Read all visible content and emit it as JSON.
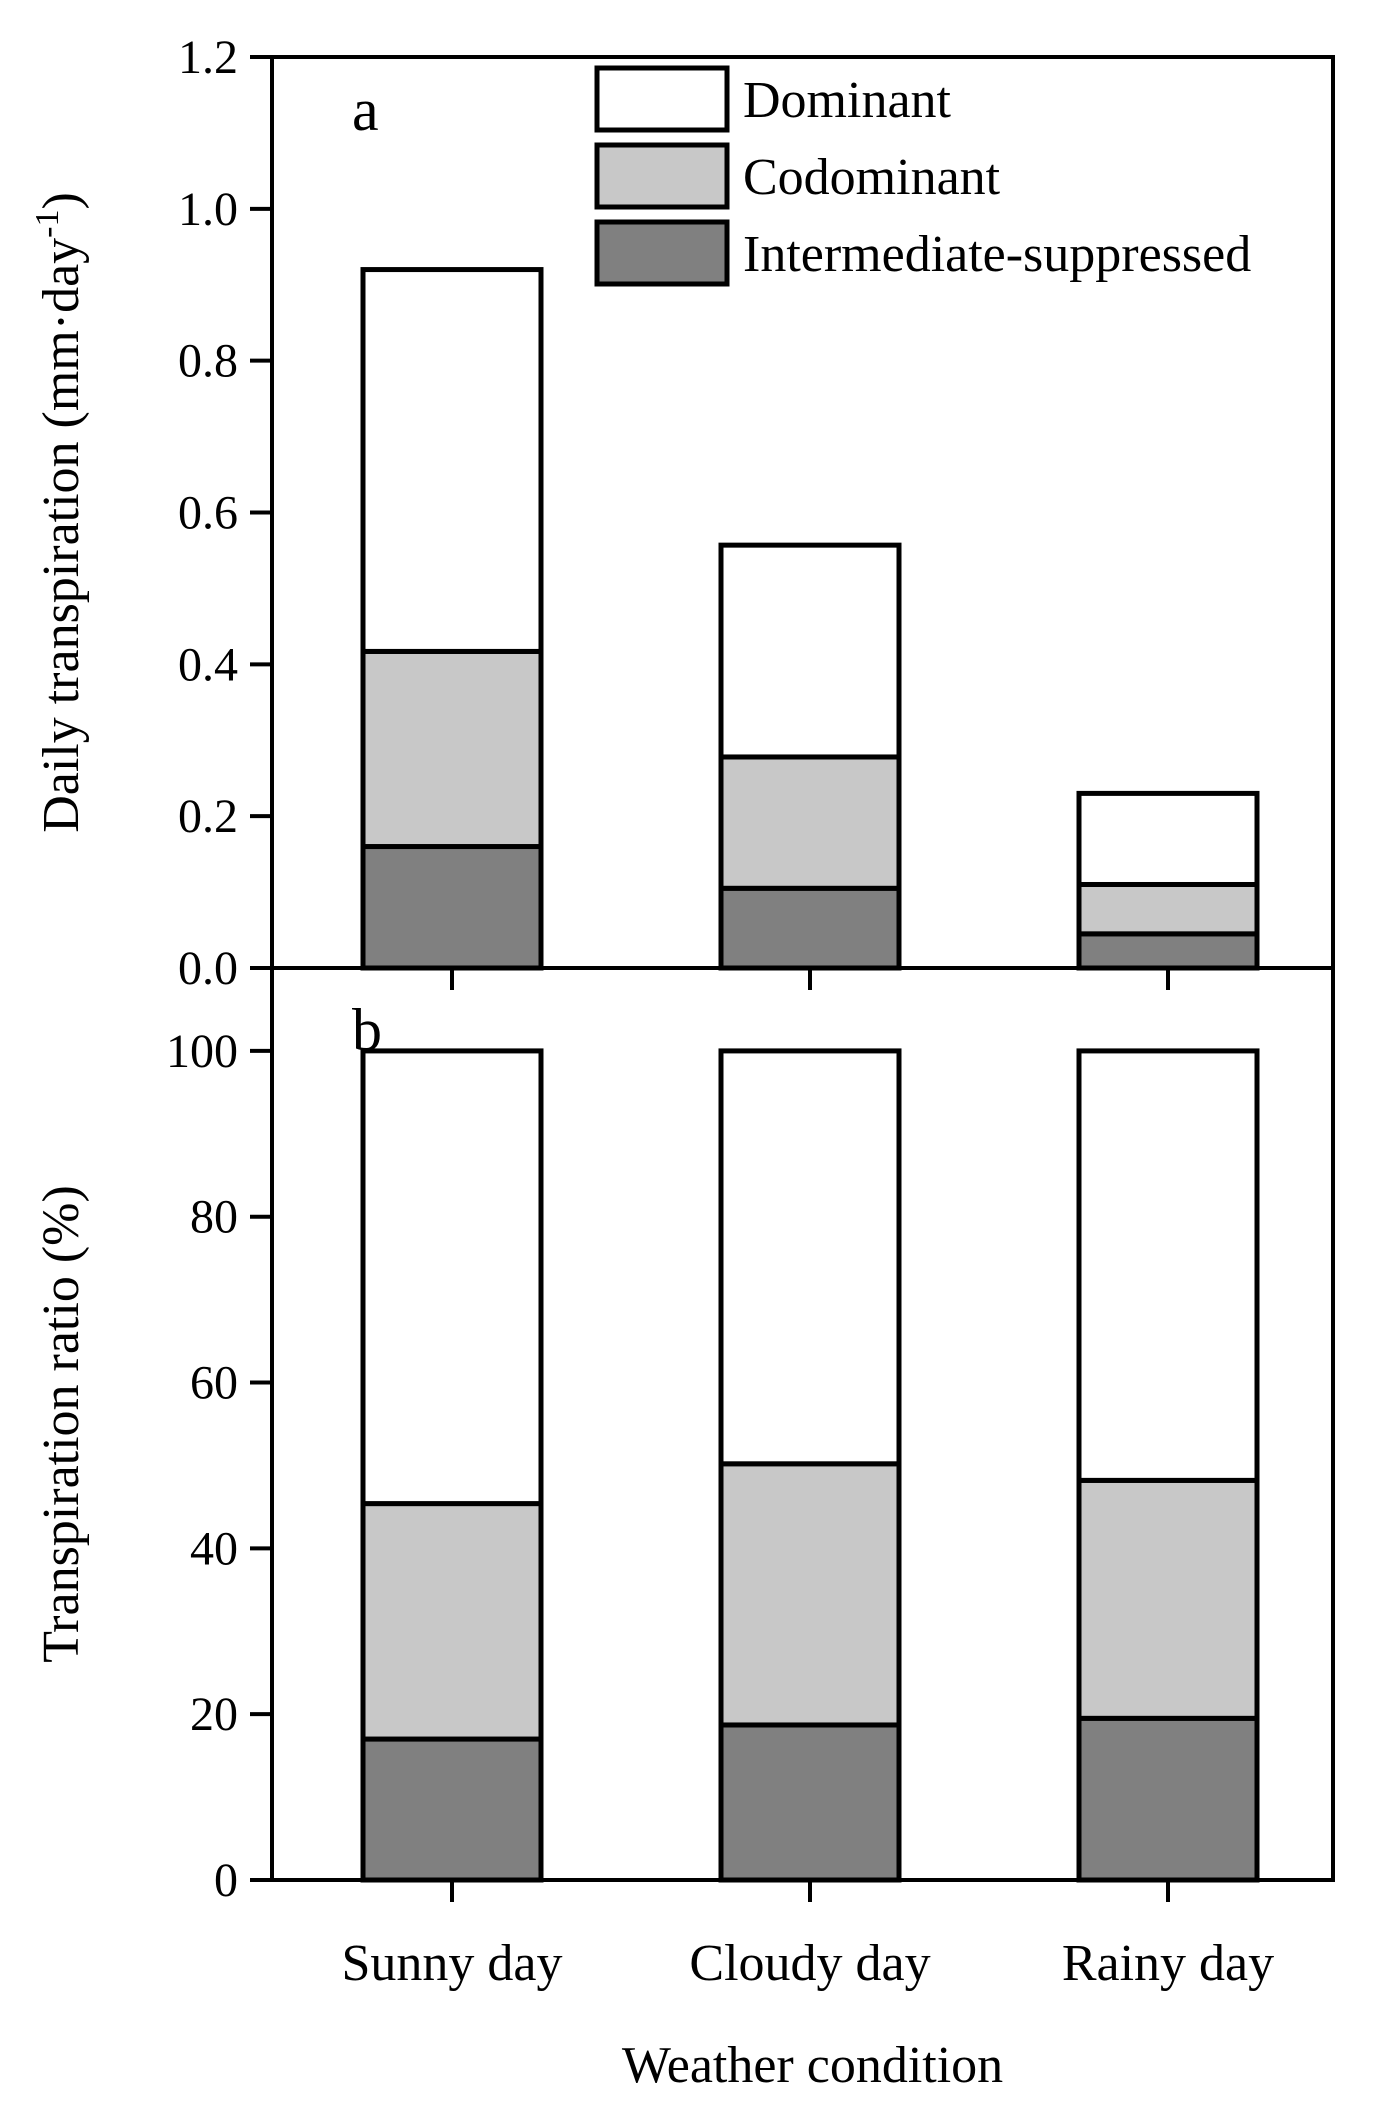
{
  "chart_data": [
    {
      "panel": "a",
      "type": "bar",
      "stacked": true,
      "categories": [
        "Sunny day",
        "Cloudy day",
        "Rainy day"
      ],
      "series": [
        {
          "name": "Intermediate-suppressed",
          "color": "#808080",
          "values": [
            0.16,
            0.105,
            0.045
          ]
        },
        {
          "name": "Codominant",
          "color": "#c8c8c8",
          "values": [
            0.257,
            0.173,
            0.065
          ]
        },
        {
          "name": "Dominant",
          "color": "#ffffff",
          "values": [
            0.503,
            0.279,
            0.12
          ]
        }
      ],
      "ylabel": "Daily transpiration (mm·day",
      "ylabel_superscript": "-1",
      "ylabel_close": ")",
      "ylim": [
        0,
        1.2
      ],
      "yticks": [
        "0.0",
        "0.2",
        "0.4",
        "0.6",
        "0.8",
        "1.0",
        "1.2"
      ],
      "legend_position": "top-right"
    },
    {
      "panel": "b",
      "type": "bar",
      "stacked": true,
      "categories": [
        "Sunny day",
        "Cloudy day",
        "Rainy day"
      ],
      "series": [
        {
          "name": "Intermediate-suppressed",
          "color": "#808080",
          "values": [
            17,
            18.7,
            19.5
          ]
        },
        {
          "name": "Codominant",
          "color": "#c8c8c8",
          "values": [
            28.4,
            31.5,
            28.7
          ]
        },
        {
          "name": "Dominant",
          "color": "#ffffff",
          "values": [
            54.6,
            49.8,
            51.8
          ]
        }
      ],
      "ylabel": "Transpiration ratio (%)",
      "ylim": [
        0,
        110
      ],
      "yticks": [
        "0",
        "20",
        "40",
        "60",
        "80",
        "100"
      ],
      "xlabel": "Weather condition"
    }
  ],
  "legend": [
    {
      "name": "Dominant",
      "color": "#ffffff"
    },
    {
      "name": "Codominant",
      "color": "#c8c8c8"
    },
    {
      "name": "Intermediate-suppressed",
      "color": "#808080"
    }
  ]
}
